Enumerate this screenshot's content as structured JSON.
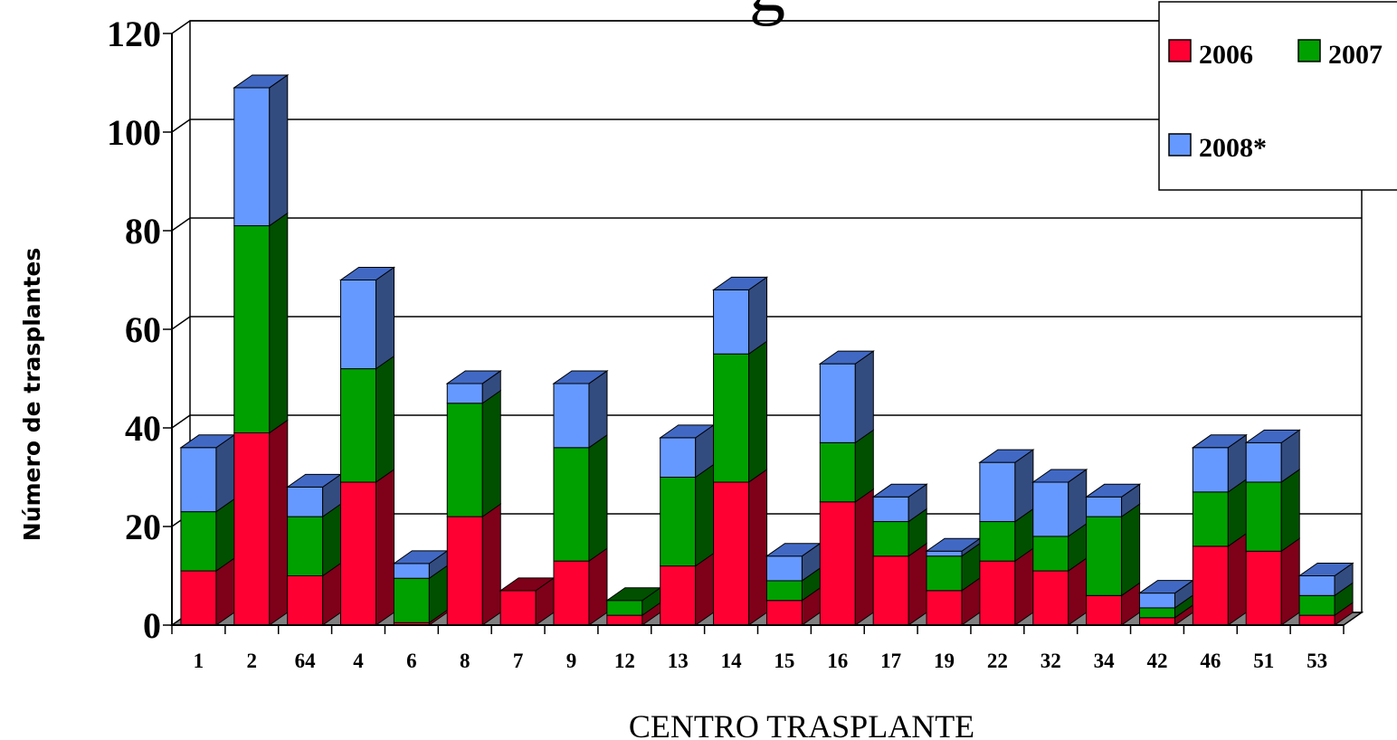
{
  "chart_data": {
    "type": "bar",
    "stacked": true,
    "three_d": true,
    "title_fragment": "g",
    "xlabel": "CENTRO TRASPLANTE",
    "ylabel": "Número de trasplantes",
    "ylim": [
      0,
      120
    ],
    "yticks": [
      "0",
      "20",
      "40",
      "60",
      "80",
      "100",
      "120"
    ],
    "grid": true,
    "legend_position": "top-right",
    "categories": [
      "1",
      "2",
      "64",
      "4",
      "6",
      "8",
      "7",
      "9",
      "12",
      "13",
      "14",
      "15",
      "16",
      "17",
      "19",
      "22",
      "32",
      "34",
      "42",
      "46",
      "51",
      "53"
    ],
    "series": [
      {
        "name": "2006",
        "color": "#ff0033",
        "side_color": "#7f0019",
        "values": [
          11,
          39,
          10,
          29,
          0.5,
          22,
          7,
          13,
          2,
          12,
          29,
          5,
          25,
          14,
          7,
          13,
          11,
          6,
          1.5,
          16,
          15,
          2
        ]
      },
      {
        "name": "2007",
        "color": "#00a000",
        "side_color": "#005000",
        "values": [
          12,
          42,
          12,
          23,
          9,
          23,
          0,
          23,
          3,
          18,
          26,
          4,
          12,
          7,
          7,
          8,
          7,
          16,
          2,
          11,
          14,
          4
        ]
      },
      {
        "name": "2008*",
        "color": "#6699ff",
        "side_color": "#334c80",
        "values": [
          13,
          28,
          6,
          18,
          3,
          4,
          0,
          13,
          0,
          8,
          13,
          5,
          16,
          5,
          1,
          12,
          11,
          4,
          3,
          9,
          8,
          4
        ]
      }
    ]
  }
}
